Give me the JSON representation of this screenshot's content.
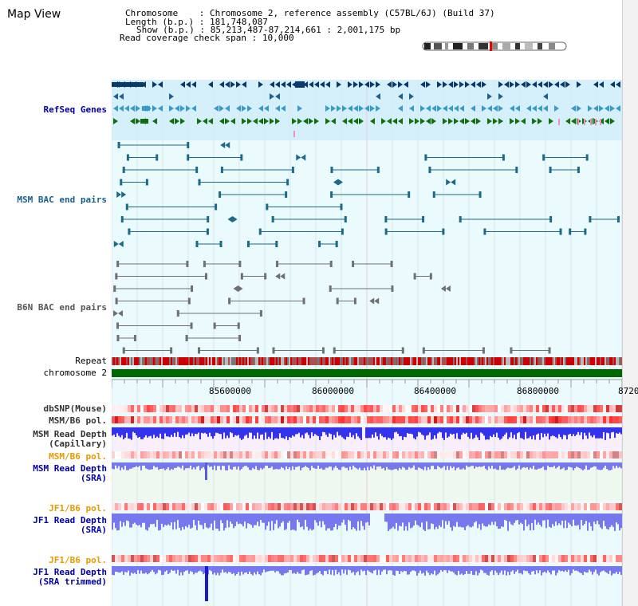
{
  "app_title": "Map View",
  "info": {
    "chromosome_label": "Chromosome",
    "chromosome_value": "Chromosome 2, reference assembly (C57BL/6J) (Build 37)",
    "length_label": "Length (b.p.)",
    "length_value": "181,748,087",
    "show_label": "Show (b.p.)",
    "show_value": "85,213,487-87,214,661 : 2,001,175 bp",
    "coverage_label": "Read coverage check span",
    "coverage_value": "10,000"
  },
  "track_labels": {
    "refseq": "RefSeq Genes",
    "msm_bac": "MSM BAC end pairs",
    "b6n_bac": "B6N BAC end pairs",
    "repeat": "Repeat",
    "chromosome": "chromosome 2",
    "dbsnp": "dbSNP(Mouse)",
    "msm_b6_pol_1": "MSM/B6 pol.",
    "msm_read_depth_cap_1": "MSM Read Depth",
    "msm_read_depth_cap_2": "(Capillary)",
    "msm_b6_pol_2": "MSM/B6 pol.",
    "msm_read_depth_sra_1": "MSM Read Depth",
    "msm_read_depth_sra_2": "(SRA)",
    "jf1_b6_pol_1": "JF1/B6 pol.",
    "jf1_read_depth_sra_1": "JF1 Read Depth",
    "jf1_read_depth_sra_2": "(SRA)",
    "jf1_b6_pol_2": "JF1/B6 pol.",
    "jf1_read_depth_trim_1": "JF1 Read Depth",
    "jf1_read_depth_trim_2": "(SRA trimmed)"
  },
  "axis": {
    "ticks": [
      "85600000",
      "86000000",
      "86400000",
      "86800000",
      "8720"
    ]
  },
  "colors": {
    "refseq_dark": "#0a3a6a",
    "refseq_mid": "#3a9ac8",
    "refseq_green": "#107010",
    "bac_teal": "#1a6a88",
    "bac_gray": "#707070",
    "chromosome_green": "#006600",
    "repeat_red": "#cc0000",
    "read_depth_blue": "#3333ee",
    "read_depth_light": "#7777ee",
    "label_orange": "#e69a00",
    "label_blue": "#0000aa"
  }
}
